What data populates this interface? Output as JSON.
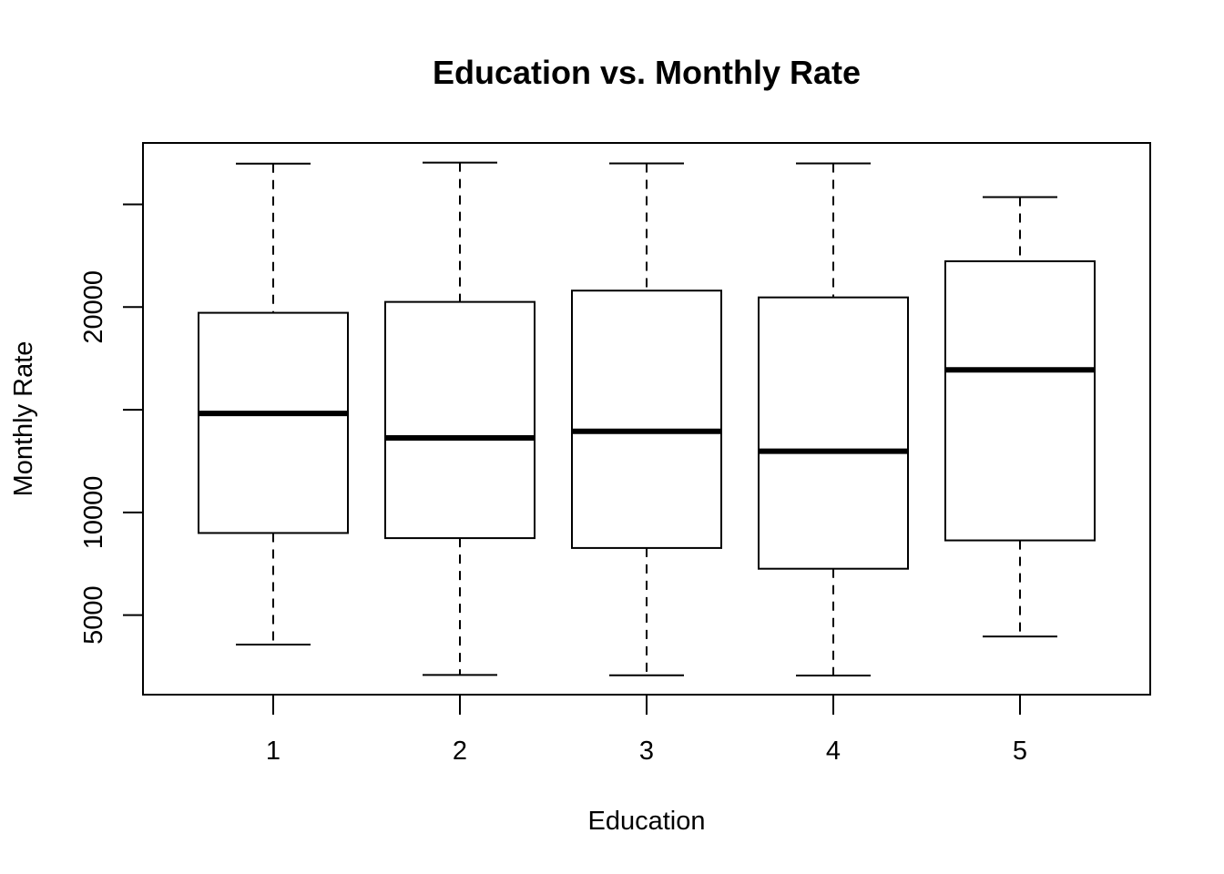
{
  "chart_data": {
    "type": "boxplot",
    "title": "Education vs. Monthly Rate",
    "xlabel": "Education",
    "ylabel": "Monthly Rate",
    "categories": [
      "1",
      "2",
      "3",
      "4",
      "5"
    ],
    "y_ticks": [
      5000,
      10000,
      15000,
      20000,
      25000
    ],
    "y_tick_labels": [
      "5000",
      "10000",
      "",
      "20000",
      ""
    ],
    "ylim": [
      1130,
      27990
    ],
    "grid": false,
    "boxes": [
      {
        "category": "1",
        "min": 3570,
        "q1": 9000,
        "median": 14820,
        "q3": 19720,
        "max": 26980
      },
      {
        "category": "2",
        "min": 2090,
        "q1": 8750,
        "median": 13630,
        "q3": 20250,
        "max": 27030
      },
      {
        "category": "3",
        "min": 2070,
        "q1": 8270,
        "median": 13950,
        "q3": 20800,
        "max": 26990
      },
      {
        "category": "4",
        "min": 2060,
        "q1": 7260,
        "median": 12980,
        "q3": 20470,
        "max": 26990
      },
      {
        "category": "5",
        "min": 3960,
        "q1": 8640,
        "median": 16940,
        "q3": 22230,
        "max": 25350
      }
    ]
  }
}
